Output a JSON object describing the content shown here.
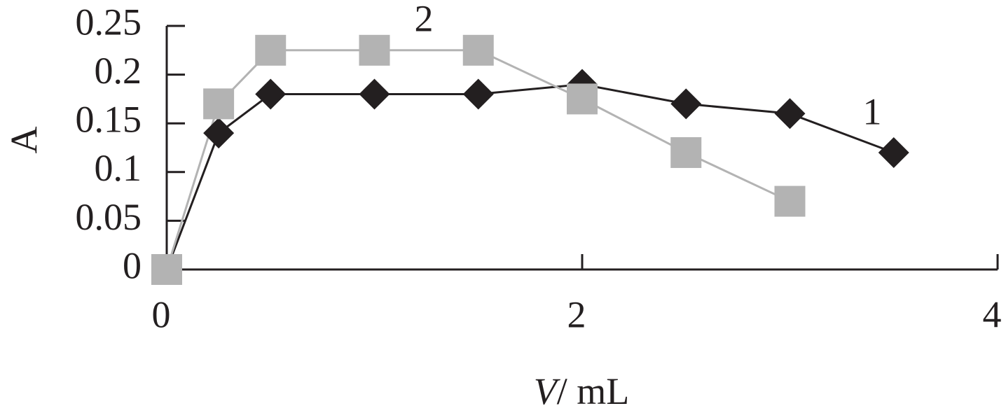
{
  "chart_data": {
    "type": "line",
    "x_label_symbol": "V",
    "x_label_unit": "/ mL",
    "y_label": "A",
    "xlim": [
      0,
      4
    ],
    "xticks": [
      0,
      2,
      4
    ],
    "ylim": [
      0,
      0.25
    ],
    "yticks": [
      0,
      0.05,
      0.1,
      0.15,
      0.2,
      0.25
    ],
    "series": [
      {
        "name": "1",
        "color": "#231f20",
        "marker": "diamond",
        "x": [
          0,
          0.25,
          0.5,
          1.0,
          1.5,
          2.0,
          2.5,
          3.0,
          3.5
        ],
        "values": [
          0,
          0.14,
          0.18,
          0.18,
          0.18,
          0.19,
          0.17,
          0.16,
          0.12
        ]
      },
      {
        "name": "2",
        "color": "#b3b3b3",
        "marker": "square",
        "x": [
          0,
          0.25,
          0.5,
          1.0,
          1.5,
          2.0,
          2.5,
          3.0
        ],
        "values": [
          0,
          0.17,
          0.225,
          0.225,
          0.225,
          0.175,
          0.12,
          0.07
        ]
      }
    ]
  }
}
